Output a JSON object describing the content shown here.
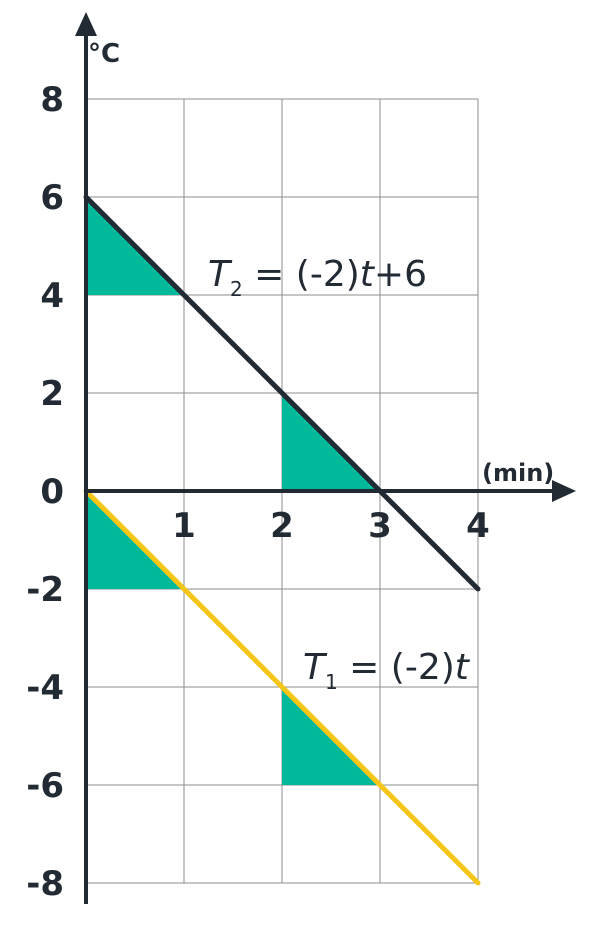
{
  "chart_data": {
    "type": "line",
    "ylabel": "°C",
    "xlabel": "(min)",
    "xlim": [
      0,
      4
    ],
    "ylim": [
      -8,
      8
    ],
    "grid": true,
    "x_ticks": [
      "1",
      "2",
      "3",
      "4"
    ],
    "y_ticks": [
      "8",
      "6",
      "4",
      "2",
      "0",
      "-2",
      "-4",
      "-6",
      "-8"
    ],
    "series": [
      {
        "name": "T2 = (-2)t+6",
        "x": [
          0,
          4
        ],
        "y": [
          6,
          -2
        ],
        "color": "#222a33"
      },
      {
        "name": "T1 = (-2)t",
        "x": [
          0,
          4
        ],
        "y": [
          0,
          -8
        ],
        "color": "#f5c518"
      }
    ],
    "annotations": {
      "shaded_triangles": [
        {
          "series": "T2 = (-2)t+6",
          "from_x": 0,
          "to_x": 1
        },
        {
          "series": "T2 = (-2)t+6",
          "from_x": 2,
          "to_x": 3
        },
        {
          "series": "T1 = (-2)t",
          "from_x": 0,
          "to_x": 1
        },
        {
          "series": "T1 = (-2)t",
          "from_x": 2,
          "to_x": 3
        }
      ],
      "fill_color": "#00b89a"
    },
    "labels": {
      "t2": {
        "var": "T",
        "sub": "2",
        "rest": " = (-2)",
        "var2": "t",
        "tail": "+6"
      },
      "t1": {
        "var": "T",
        "sub": "1",
        "rest": " = (-2)",
        "var2": "t",
        "tail": ""
      }
    }
  }
}
